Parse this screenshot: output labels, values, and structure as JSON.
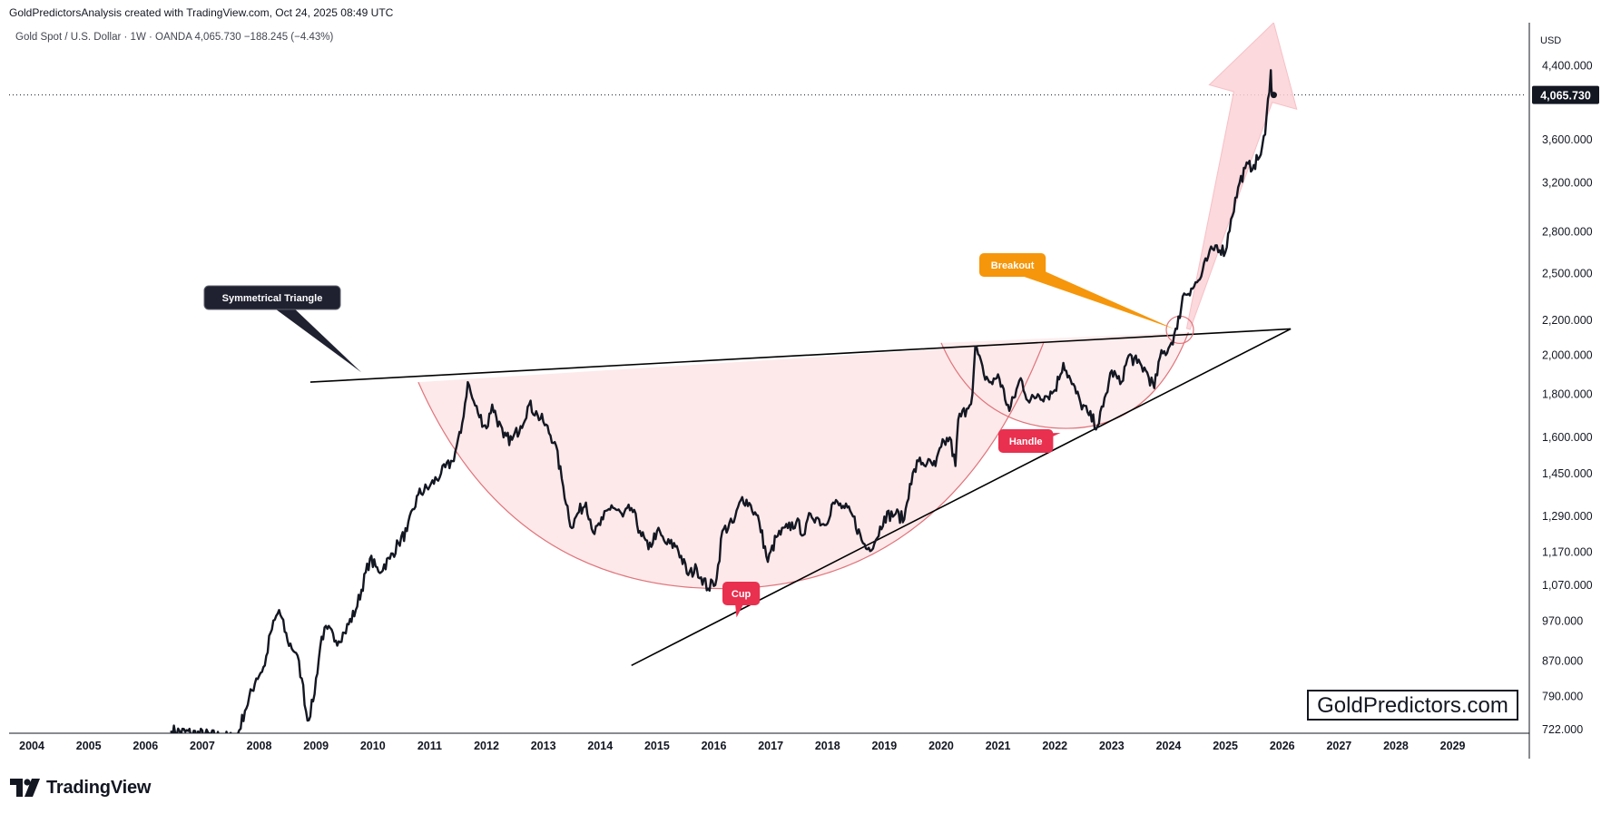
{
  "header": {
    "attribution": "GoldPredictorsAnalysis created with TradingView.com, Oct 24, 2025 08:49 UTC",
    "symbol_line": "Gold Spot / U.S. Dollar · 1W · OANDA  4,065.730  −188.245 (−4.43%)"
  },
  "footer": {
    "brand": "TradingView"
  },
  "watermark": "GoldPredictors.com",
  "colors": {
    "price_line": "#131722",
    "trend_line": "#000000",
    "cup_arc": "#e0737a",
    "cup_fill": "#fde9ea",
    "arrow_fill": "#fbd3d7",
    "callout_dark": "#1f2130",
    "callout_red": "#e9304f",
    "callout_orange": "#f5960b",
    "axis_text": "#131722",
    "price_tag_bg": "#131722"
  },
  "chart_data": {
    "type": "line",
    "title": "",
    "series": [
      {
        "values": [
          [
            2006.45,
            720
          ],
          [
            2007.6,
            705
          ],
          [
            2007.75,
            760
          ],
          [
            2007.95,
            830
          ],
          [
            2008.1,
            860
          ],
          [
            2008.2,
            940
          ],
          [
            2008.35,
            1000
          ],
          [
            2008.5,
            920
          ],
          [
            2008.65,
            890
          ],
          [
            2008.75,
            830
          ],
          [
            2008.85,
            740
          ],
          [
            2008.95,
            780
          ],
          [
            2009.1,
            930
          ],
          [
            2009.2,
            950
          ],
          [
            2009.35,
            920
          ],
          [
            2009.5,
            940
          ],
          [
            2009.7,
            1000
          ],
          [
            2009.95,
            1150
          ],
          [
            2010.1,
            1110
          ],
          [
            2010.3,
            1150
          ],
          [
            2010.45,
            1200
          ],
          [
            2010.6,
            1240
          ],
          [
            2010.8,
            1370
          ],
          [
            2011.0,
            1400
          ],
          [
            2011.2,
            1450
          ],
          [
            2011.4,
            1500
          ],
          [
            2011.55,
            1620
          ],
          [
            2011.67,
            1860
          ],
          [
            2011.75,
            1780
          ],
          [
            2011.85,
            1710
          ],
          [
            2012.0,
            1640
          ],
          [
            2012.1,
            1750
          ],
          [
            2012.3,
            1600
          ],
          [
            2012.45,
            1590
          ],
          [
            2012.6,
            1650
          ],
          [
            2012.75,
            1750
          ],
          [
            2012.9,
            1700
          ],
          [
            2013.0,
            1670
          ],
          [
            2013.2,
            1580
          ],
          [
            2013.35,
            1400
          ],
          [
            2013.5,
            1250
          ],
          [
            2013.6,
            1300
          ],
          [
            2013.75,
            1340
          ],
          [
            2013.9,
            1230
          ],
          [
            2014.05,
            1280
          ],
          [
            2014.2,
            1330
          ],
          [
            2014.4,
            1290
          ],
          [
            2014.55,
            1320
          ],
          [
            2014.7,
            1240
          ],
          [
            2014.85,
            1180
          ],
          [
            2015.0,
            1240
          ],
          [
            2015.15,
            1200
          ],
          [
            2015.35,
            1190
          ],
          [
            2015.55,
            1100
          ],
          [
            2015.7,
            1120
          ],
          [
            2015.9,
            1060
          ],
          [
            2016.05,
            1090
          ],
          [
            2016.15,
            1240
          ],
          [
            2016.35,
            1270
          ],
          [
            2016.5,
            1360
          ],
          [
            2016.65,
            1330
          ],
          [
            2016.8,
            1270
          ],
          [
            2016.95,
            1140
          ],
          [
            2017.1,
            1220
          ],
          [
            2017.3,
            1250
          ],
          [
            2017.45,
            1270
          ],
          [
            2017.6,
            1230
          ],
          [
            2017.7,
            1300
          ],
          [
            2017.85,
            1280
          ],
          [
            2017.95,
            1260
          ],
          [
            2018.1,
            1340
          ],
          [
            2018.3,
            1320
          ],
          [
            2018.45,
            1290
          ],
          [
            2018.6,
            1210
          ],
          [
            2018.7,
            1180
          ],
          [
            2018.85,
            1210
          ],
          [
            2019.0,
            1290
          ],
          [
            2019.2,
            1300
          ],
          [
            2019.35,
            1280
          ],
          [
            2019.45,
            1410
          ],
          [
            2019.6,
            1500
          ],
          [
            2019.75,
            1490
          ],
          [
            2019.9,
            1480
          ],
          [
            2020.0,
            1560
          ],
          [
            2020.15,
            1600
          ],
          [
            2020.25,
            1480
          ],
          [
            2020.3,
            1680
          ],
          [
            2020.45,
            1730
          ],
          [
            2020.55,
            1800
          ],
          [
            2020.6,
            2050
          ],
          [
            2020.75,
            1900
          ],
          [
            2020.9,
            1850
          ],
          [
            2021.0,
            1900
          ],
          [
            2021.2,
            1720
          ],
          [
            2021.4,
            1880
          ],
          [
            2021.55,
            1760
          ],
          [
            2021.7,
            1800
          ],
          [
            2021.85,
            1790
          ],
          [
            2022.0,
            1820
          ],
          [
            2022.15,
            1960
          ],
          [
            2022.3,
            1850
          ],
          [
            2022.45,
            1760
          ],
          [
            2022.6,
            1700
          ],
          [
            2022.75,
            1650
          ],
          [
            2022.85,
            1740
          ],
          [
            2023.0,
            1920
          ],
          [
            2023.15,
            1850
          ],
          [
            2023.3,
            2000
          ],
          [
            2023.45,
            1960
          ],
          [
            2023.6,
            1920
          ],
          [
            2023.75,
            1830
          ],
          [
            2023.85,
            1990
          ],
          [
            2024.0,
            2040
          ],
          [
            2024.15,
            2150
          ],
          [
            2024.25,
            2350
          ],
          [
            2024.4,
            2400
          ],
          [
            2024.55,
            2460
          ],
          [
            2024.7,
            2620
          ],
          [
            2024.85,
            2700
          ],
          [
            2025.0,
            2650
          ],
          [
            2025.1,
            2900
          ],
          [
            2025.25,
            3200
          ],
          [
            2025.35,
            3330
          ],
          [
            2025.5,
            3360
          ],
          [
            2025.6,
            3430
          ],
          [
            2025.7,
            3650
          ],
          [
            2025.8,
            4350
          ],
          [
            2025.82,
            4065.73
          ]
        ]
      }
    ],
    "x_range": [
      2003.6,
      2030.3
    ],
    "y_range": [
      715,
      4950
    ],
    "y_scale": "log",
    "x_ticks": [
      "2004",
      "2005",
      "2006",
      "2007",
      "2008",
      "2009",
      "2010",
      "2011",
      "2012",
      "2013",
      "2014",
      "2015",
      "2016",
      "2017",
      "2018",
      "2019",
      "2020",
      "2021",
      "2022",
      "2023",
      "2024",
      "2025",
      "2026",
      "2027",
      "2028",
      "2029"
    ],
    "y_ticks": [
      4400,
      3600,
      3200,
      2800,
      2500,
      2200,
      2000,
      1800,
      1600,
      1450,
      1290,
      1170,
      1070,
      970,
      870,
      790,
      722
    ],
    "y_tick_labels": [
      "4,400.000",
      "3,600.000",
      "3,200.000",
      "2,800.000",
      "2,500.000",
      "2,200.000",
      "2,000.000",
      "1,800.000",
      "1,600.000",
      "1,450.000",
      "1,290.000",
      "1,170.000",
      "1,070.000",
      "970.000",
      "870.000",
      "790.000",
      "722.000"
    ],
    "y_axis_unit": "USD",
    "last_price": 4065.73,
    "last_price_label": "4,065.730",
    "grid": false,
    "annotations": {
      "triangle_upper": [
        [
          2008.9,
          1860
        ],
        [
          2026.15,
          2150
        ]
      ],
      "triangle_lower": [
        [
          2014.55,
          860
        ],
        [
          2026.15,
          2150
        ]
      ],
      "cup": {
        "left": [
          2010.8,
          1860
        ],
        "bottom": [
          2016.15,
          1060
        ],
        "right": [
          2021.8,
          2070
        ]
      },
      "handle": {
        "left": [
          2020.0,
          2070
        ],
        "bottom": [
          2022.2,
          1640
        ],
        "right": [
          2024.35,
          2130
        ]
      },
      "breakout_circle": [
        2024.2,
        2145
      ],
      "arrow": {
        "tail": [
          2024.35,
          2150
        ],
        "head": [
          2025.85,
          4950
        ]
      },
      "labels": [
        {
          "text": "Symmetrical Triangle",
          "anchor": [
            2009.8,
            1910
          ],
          "style": "dark"
        },
        {
          "text": "Cup",
          "anchor": [
            2016.4,
            980
          ],
          "style": "red"
        },
        {
          "text": "Handle",
          "anchor": [
            2022.1,
            1620
          ],
          "style": "red"
        },
        {
          "text": "Breakout",
          "anchor": [
            2024.1,
            2150
          ],
          "style": "orange"
        }
      ]
    }
  }
}
